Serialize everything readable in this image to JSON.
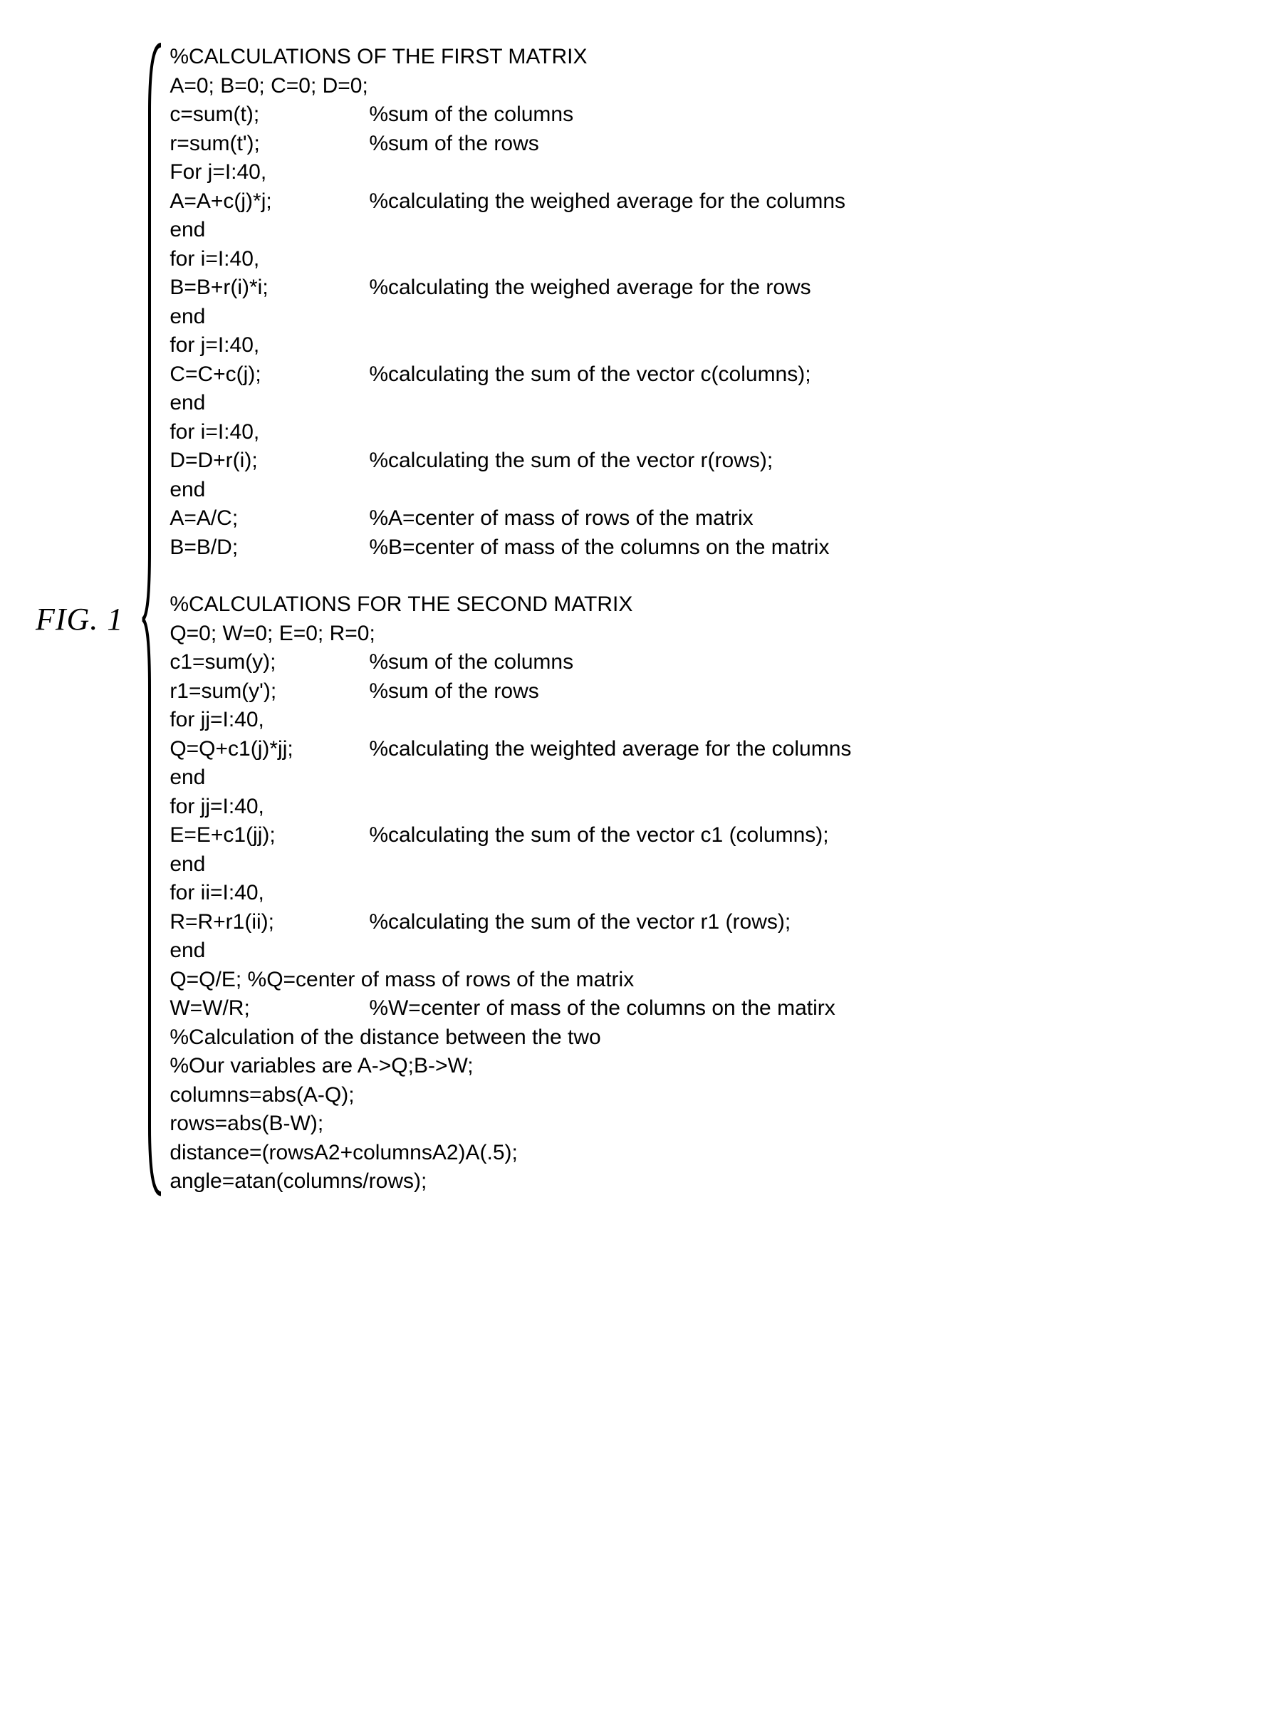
{
  "figure_label": "FIG. 1",
  "section1": {
    "title": "%CALCULATIONS OF THE FIRST MATRIX",
    "lines": [
      {
        "code": "A=0; B=0; C=0; D=0;",
        "comment": ""
      },
      {
        "code": "c=sum(t);",
        "comment": "%sum of the columns"
      },
      {
        "code": "r=sum(t');",
        "comment": "%sum of the rows"
      },
      {
        "code": "For j=I:40,",
        "comment": ""
      },
      {
        "code": "A=A+c(j)*j;",
        "comment": "%calculating the weighed average for the columns"
      },
      {
        "code": "end",
        "comment": ""
      },
      {
        "code": "for i=I:40,",
        "comment": ""
      },
      {
        "code": "B=B+r(i)*i;",
        "comment": "%calculating the weighed average for the rows"
      },
      {
        "code": "end",
        "comment": ""
      },
      {
        "code": "for j=I:40,",
        "comment": ""
      },
      {
        "code": "C=C+c(j);",
        "comment": "%calculating the sum of the vector c(columns);"
      },
      {
        "code": "end",
        "comment": ""
      },
      {
        "code": "for i=I:40,",
        "comment": ""
      },
      {
        "code": "D=D+r(i);",
        "comment": "%calculating the sum of the vector r(rows);"
      },
      {
        "code": "end",
        "comment": ""
      },
      {
        "code": "A=A/C;",
        "comment": "%A=center of mass of rows of the matrix"
      },
      {
        "code": "B=B/D;",
        "comment": "%B=center of mass of the columns on the matrix"
      }
    ]
  },
  "section2": {
    "title": "%CALCULATIONS FOR THE SECOND MATRIX",
    "lines": [
      {
        "code": "Q=0; W=0; E=0; R=0;",
        "comment": ""
      },
      {
        "code": "c1=sum(y);",
        "comment": "%sum of the columns"
      },
      {
        "code": "r1=sum(y');",
        "comment": "%sum of the rows"
      },
      {
        "code": "for jj=I:40,",
        "comment": ""
      },
      {
        "code": "Q=Q+c1(j)*jj;",
        "comment": "%calculating the weighted average for the columns"
      },
      {
        "code": "end",
        "comment": ""
      },
      {
        "code": "for jj=I:40,",
        "comment": ""
      },
      {
        "code": "E=E+c1(jj);",
        "comment": "%calculating the sum of the vector c1 (columns);"
      },
      {
        "code": "end",
        "comment": ""
      },
      {
        "code": "for ii=I:40,",
        "comment": ""
      },
      {
        "code": "R=R+r1(ii);",
        "comment": "%calculating the sum of the vector r1 (rows);"
      },
      {
        "code": "end",
        "comment": ""
      },
      {
        "code": "Q=Q/E; %Q=center of mass of rows of the matrix",
        "comment": ""
      },
      {
        "code": "W=W/R;",
        "comment": "%W=center of mass of the columns on the matirx"
      },
      {
        "code": "%Calculation of the distance between the two",
        "comment": ""
      },
      {
        "code": "%Our variables are A->Q;B->W;",
        "comment": ""
      },
      {
        "code": "columns=abs(A-Q);",
        "comment": ""
      },
      {
        "code": "rows=abs(B-W);",
        "comment": ""
      },
      {
        "code": "distance=(rowsA2+columnsA2)A(.5);",
        "comment": ""
      },
      {
        "code": "angle=atan(columns/rows);",
        "comment": ""
      }
    ]
  }
}
